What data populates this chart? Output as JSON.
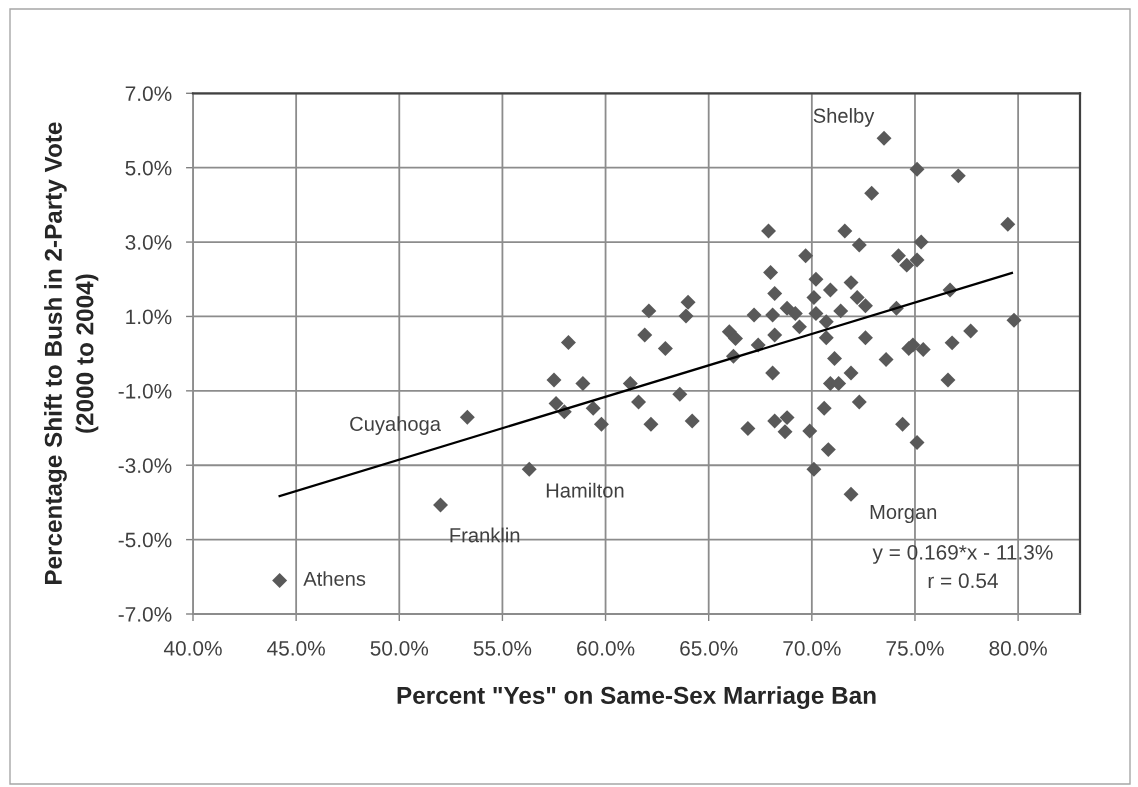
{
  "chart_data": {
    "type": "scatter",
    "xlabel": "Percent \"Yes\" on Same-Sex Marriage Ban",
    "ylabel": "Percentage Shift to Bush in 2-Party Vote\n(2000 to 2004)",
    "xlim": [
      40,
      83
    ],
    "ylim": [
      -7,
      7
    ],
    "xticks": [
      {
        "value": 40,
        "label": "40.0%"
      },
      {
        "value": 45,
        "label": "45.0%"
      },
      {
        "value": 50,
        "label": "50.0%"
      },
      {
        "value": 55,
        "label": "55.0%"
      },
      {
        "value": 60,
        "label": "60.0%"
      },
      {
        "value": 65,
        "label": "65.0%"
      },
      {
        "value": 70,
        "label": "70.0%"
      },
      {
        "value": 75,
        "label": "75.0%"
      },
      {
        "value": 80,
        "label": "80.0%"
      }
    ],
    "yticks": [
      {
        "value": -7,
        "label": "-7.0%"
      },
      {
        "value": -5,
        "label": "-5.0%"
      },
      {
        "value": -3,
        "label": "-3.0%"
      },
      {
        "value": -1,
        "label": "-1.0%"
      },
      {
        "value": 1,
        "label": "1.0%"
      },
      {
        "value": 3,
        "label": "3.0%"
      },
      {
        "value": 5,
        "label": "5.0%"
      },
      {
        "value": 7,
        "label": "7.0%"
      }
    ],
    "grid": true,
    "marker": "diamond",
    "series": [
      {
        "color": "#595959",
        "x": [
          44.2,
          52.0,
          53.3,
          56.3,
          57.5,
          57.6,
          58.0,
          58.2,
          58.9,
          59.4,
          59.8,
          61.2,
          61.6,
          61.9,
          62.1,
          62.2,
          62.9,
          63.6,
          63.9,
          64.0,
          64.2,
          66.0,
          66.2,
          66.3,
          66.9,
          67.2,
          67.4,
          67.9,
          68.0,
          68.1,
          68.1,
          68.2,
          68.2,
          68.2,
          68.7,
          68.8,
          68.8,
          69.2,
          69.4,
          69.7,
          69.9,
          70.1,
          70.1,
          70.2,
          70.2,
          70.6,
          70.7,
          70.7,
          70.8,
          70.9,
          70.9,
          71.1,
          71.3,
          71.4,
          71.6,
          71.9,
          71.9,
          71.9,
          72.2,
          72.3,
          72.3,
          72.6,
          72.6,
          72.9,
          73.5,
          73.6,
          74.1,
          74.2,
          74.4,
          74.6,
          74.7,
          74.9,
          75.1,
          75.1,
          75.1,
          75.3,
          75.4,
          76.6,
          76.7,
          76.8,
          77.1,
          77.7,
          79.5,
          79.8
        ],
        "values": [
          -6.1,
          -4.07,
          -1.71,
          -3.11,
          -0.71,
          -1.34,
          -1.56,
          0.3,
          -0.8,
          -1.47,
          -1.9,
          -0.8,
          -1.3,
          0.5,
          1.15,
          -1.9,
          0.14,
          -1.09,
          1.01,
          1.38,
          -1.81,
          0.59,
          -0.07,
          0.41,
          -2.01,
          1.04,
          0.23,
          3.3,
          2.18,
          -0.52,
          1.04,
          -1.81,
          1.62,
          0.5,
          -2.1,
          -1.72,
          1.22,
          1.08,
          0.72,
          2.63,
          -2.08,
          -3.11,
          1.51,
          2.0,
          1.08,
          -1.47,
          0.86,
          0.43,
          -2.58,
          1.71,
          -0.8,
          -0.13,
          -0.8,
          1.15,
          3.3,
          -0.52,
          -3.78,
          1.91,
          1.51,
          -1.3,
          2.92,
          1.29,
          0.43,
          4.31,
          5.79,
          -0.16,
          1.22,
          2.63,
          -1.9,
          2.38,
          0.14,
          0.23,
          4.96,
          2.52,
          -2.39,
          3.0,
          0.11,
          -0.71,
          1.71,
          0.29,
          4.78,
          0.61,
          3.48,
          0.9
        ]
      },
      {
        "type": "line",
        "color": "#000000",
        "marker": "none",
        "line_style": "solid",
        "x": [
          44.2,
          79.7
        ],
        "values": [
          -3.83,
          2.17
        ]
      }
    ],
    "annotations": [
      {
        "text": "Shelby",
        "x": 73.5,
        "y": 5.79
      },
      {
        "text": "Cuyahoga",
        "x": 53.3,
        "y": -1.71
      },
      {
        "text": "Hamilton",
        "x": 56.3,
        "y": -3.11
      },
      {
        "text": "Morgan",
        "x": 71.9,
        "y": -3.78
      },
      {
        "text": "Franklin",
        "x": 52.0,
        "y": -4.07
      },
      {
        "text": "Athens",
        "x": 44.2,
        "y": -6.1
      },
      "y = 0.169*x - 11.3%",
      "r = 0.54"
    ]
  }
}
